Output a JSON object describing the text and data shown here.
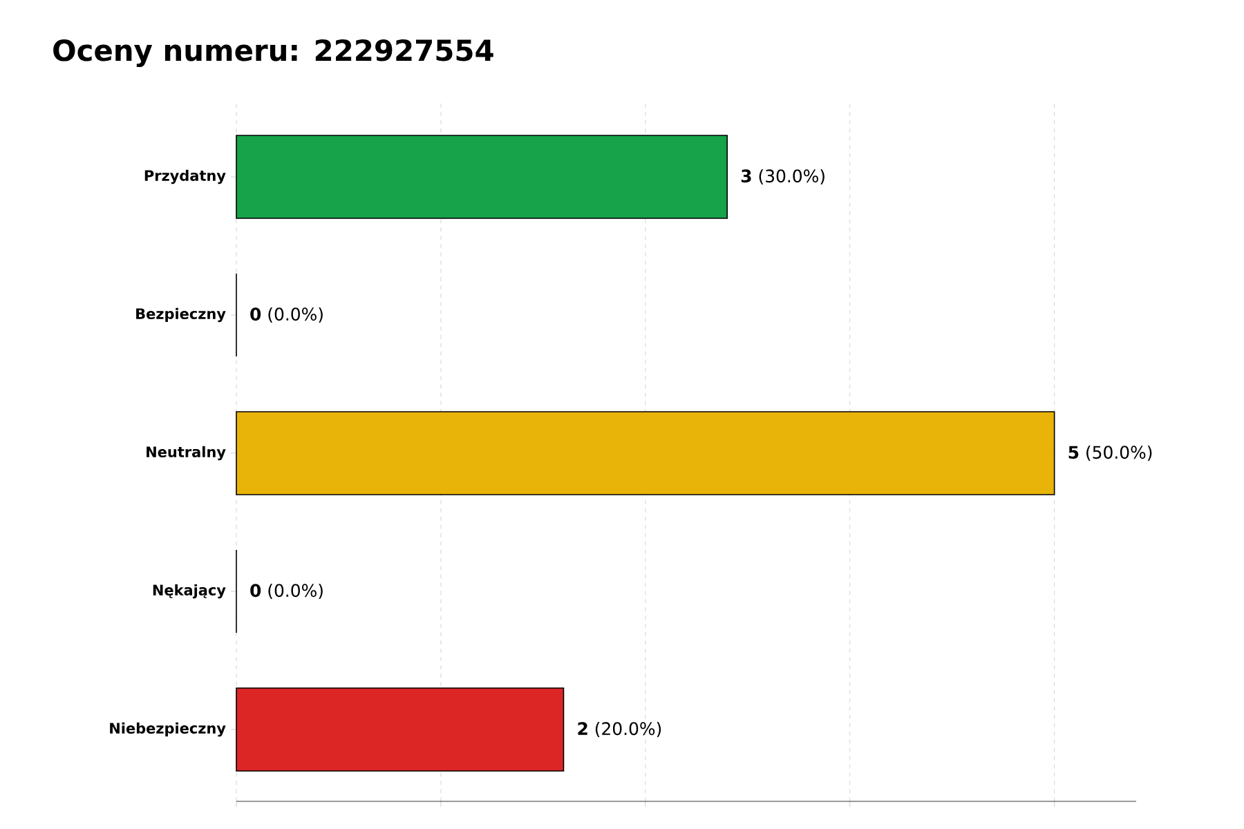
{
  "chart_data": {
    "type": "bar",
    "orientation": "horizontal",
    "title": "Oceny numeru: 222927554",
    "categories": [
      "Przydatny",
      "Bezpieczny",
      "Neutralny",
      "Nękający",
      "Niebezpieczny"
    ],
    "values": [
      3,
      0,
      5,
      0,
      2
    ],
    "colors": [
      "#16a34a",
      "#808080",
      "#e8b40a",
      "#808080",
      "#dc2626"
    ],
    "value_labels": [
      "**3** (30.0%)",
      "**0** (0.0%)",
      "**5** (50.0%)",
      "**0** (0.0%)",
      "**2** (20.0%)"
    ],
    "xlim": [
      0,
      5.5
    ],
    "xticks": [
      {
        "value": 0,
        "label": null
      },
      {
        "value": 1.25,
        "label": null
      },
      {
        "value": 2.5,
        "label": null
      },
      {
        "value": 3.75,
        "label": null
      },
      {
        "value": 5,
        "label": null
      }
    ],
    "tick_labels": "y",
    "grid": "x"
  }
}
